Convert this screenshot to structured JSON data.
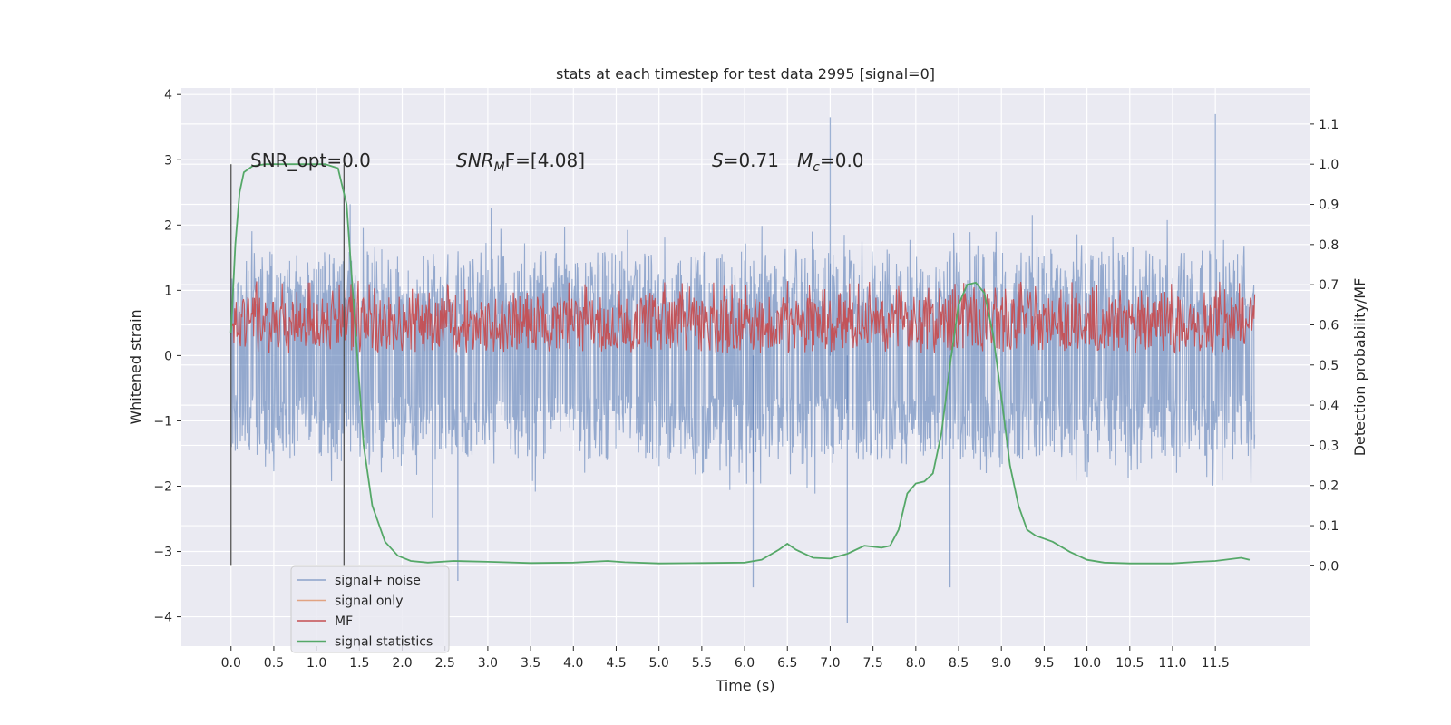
{
  "chart_data": {
    "type": "line",
    "title": "stats at each timestep for test data 2995 [signal=0]",
    "xlabel": "Time (s)",
    "ylabel": "Whitened strain",
    "ylabel_right": "Detection probability/MF",
    "xlim": [
      -0.58,
      12.6
    ],
    "ylim": [
      -4.45,
      4.1
    ],
    "ylim_right": [
      -0.2,
      1.19
    ],
    "x_ticks": [
      0.0,
      0.5,
      1.0,
      1.5,
      2.0,
      2.5,
      3.0,
      3.5,
      4.0,
      4.5,
      5.0,
      5.5,
      6.0,
      6.5,
      7.0,
      7.5,
      8.0,
      8.5,
      9.0,
      9.5,
      10.0,
      10.5,
      11.0,
      11.5
    ],
    "x_tick_labels": [
      "0.0",
      "0.5",
      "1.0",
      "1.5",
      "2.0",
      "2.5",
      "3.0",
      "3.5",
      "4.0",
      "4.5",
      "5.0",
      "5.5",
      "6.0",
      "6.5",
      "7.0",
      "7.5",
      "8.0",
      "8.5",
      "9.0",
      "9.5",
      "10.0",
      "10.5",
      "11.0",
      "11.5"
    ],
    "y_ticks": [
      -4,
      -3,
      -2,
      -1,
      0,
      1,
      2,
      3,
      4
    ],
    "y_tick_labels": [
      "−4",
      "−3",
      "−2",
      "−1",
      "0",
      "1",
      "2",
      "3",
      "4"
    ],
    "y2_ticks": [
      0.0,
      0.1,
      0.2,
      0.3,
      0.4,
      0.5,
      0.6,
      0.7,
      0.8,
      0.9,
      1.0,
      1.1
    ],
    "y2_tick_labels": [
      "0.0",
      "0.1",
      "0.2",
      "0.3",
      "0.4",
      "0.5",
      "0.6",
      "0.7",
      "0.8",
      "0.9",
      "1.0",
      "1.1"
    ],
    "grid": true,
    "legend_position": "bottom-left",
    "annotations": {
      "snr_opt": "SNR_opt=0.0",
      "snr_mf_sym": "SNR",
      "snr_mf_sub": "M",
      "snr_mf_rest": "F=[4.08]",
      "s_sym": "S",
      "s_rest": "=0.71",
      "mc_sym": "M",
      "mc_sub": "c",
      "mc_rest": "=0.0"
    },
    "vertical_markers": [
      0.0,
      1.32
    ],
    "series": [
      {
        "name": "signal+ noise",
        "color": "#4c72b0",
        "style": "noise band",
        "x_range": [
          0.0,
          11.96
        ],
        "typical_range": [
          -1.6,
          1.6
        ],
        "extremes": [
          {
            "x": 7.0,
            "y": 3.65
          },
          {
            "x": 11.5,
            "y": 3.7
          },
          {
            "x": 7.2,
            "y": -4.1
          },
          {
            "x": 6.1,
            "y": -3.55
          },
          {
            "x": 8.4,
            "y": -3.55
          },
          {
            "x": 2.65,
            "y": -3.45
          }
        ]
      },
      {
        "name": "signal only",
        "color": "#dd8452",
        "x": [],
        "y": []
      },
      {
        "name": "MF",
        "color": "#c44e52",
        "style": "noise band",
        "axis": "right",
        "x_range": [
          0.0,
          11.96
        ],
        "typical_range": [
          0.53,
          0.67
        ],
        "peak_max": 0.71
      },
      {
        "name": "signal statistics",
        "color": "#55a868",
        "axis": "right",
        "x": [
          0.0,
          0.05,
          0.1,
          0.15,
          0.25,
          0.4,
          0.8,
          1.1,
          1.25,
          1.35,
          1.45,
          1.55,
          1.65,
          1.8,
          1.95,
          2.1,
          2.3,
          2.6,
          3.0,
          3.5,
          4.0,
          4.2,
          4.4,
          4.6,
          5.0,
          5.5,
          6.0,
          6.2,
          6.4,
          6.5,
          6.6,
          6.8,
          7.0,
          7.2,
          7.4,
          7.6,
          7.7,
          7.8,
          7.9,
          8.0,
          8.1,
          8.2,
          8.3,
          8.4,
          8.5,
          8.6,
          8.7,
          8.8,
          8.9,
          9.0,
          9.1,
          9.2,
          9.3,
          9.4,
          9.6,
          9.8,
          10.0,
          10.2,
          10.5,
          11.0,
          11.3,
          11.5,
          11.8,
          11.9
        ],
        "y": [
          0.58,
          0.8,
          0.93,
          0.98,
          0.995,
          1.0,
          1.0,
          1.0,
          0.99,
          0.9,
          0.6,
          0.3,
          0.15,
          0.06,
          0.025,
          0.012,
          0.008,
          0.012,
          0.01,
          0.007,
          0.008,
          0.01,
          0.012,
          0.009,
          0.006,
          0.007,
          0.008,
          0.015,
          0.04,
          0.055,
          0.04,
          0.02,
          0.018,
          0.03,
          0.05,
          0.045,
          0.05,
          0.09,
          0.18,
          0.205,
          0.21,
          0.23,
          0.33,
          0.5,
          0.65,
          0.7,
          0.705,
          0.68,
          0.58,
          0.42,
          0.25,
          0.15,
          0.09,
          0.075,
          0.06,
          0.035,
          0.015,
          0.008,
          0.006,
          0.006,
          0.01,
          0.012,
          0.02,
          0.015
        ]
      }
    ]
  }
}
